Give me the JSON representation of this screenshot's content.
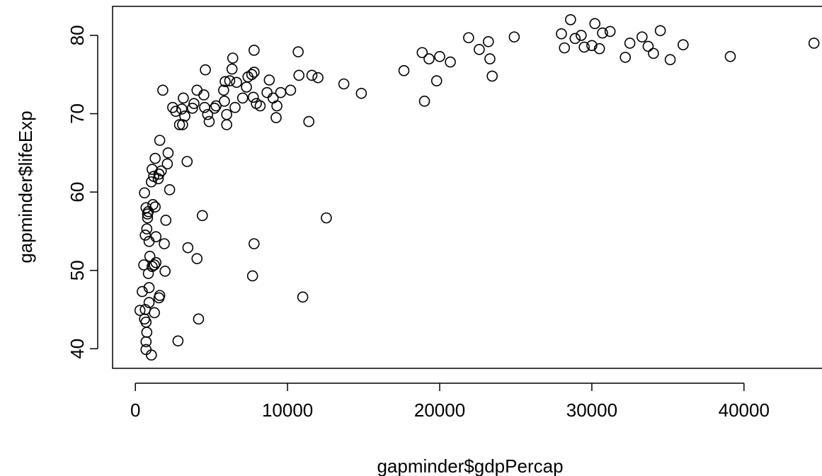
{
  "chart_data": {
    "type": "scatter",
    "title": "",
    "xlabel": "gapminder$gdpPercap",
    "ylabel": "gapminder$lifeExp",
    "xlim": [
      -1500,
      45500
    ],
    "ylim": [
      37.5,
      83.7
    ],
    "x_ticks": [
      0,
      10000,
      20000,
      30000,
      40000
    ],
    "x_tick_labels": [
      "0",
      "10000",
      "20000",
      "30000",
      "40000"
    ],
    "y_ticks": [
      40,
      50,
      60,
      70,
      80
    ],
    "y_tick_labels": [
      "40",
      "50",
      "60",
      "70",
      "80"
    ],
    "grid": false,
    "legend": "none",
    "points": [
      {
        "x": 300,
        "y": 44.9
      },
      {
        "x": 450,
        "y": 47.3
      },
      {
        "x": 550,
        "y": 50.7
      },
      {
        "x": 600,
        "y": 59.9
      },
      {
        "x": 600,
        "y": 43.8
      },
      {
        "x": 650,
        "y": 45.0
      },
      {
        "x": 650,
        "y": 54.5
      },
      {
        "x": 700,
        "y": 58.0
      },
      {
        "x": 700,
        "y": 43.4
      },
      {
        "x": 700,
        "y": 39.9
      },
      {
        "x": 700,
        "y": 40.9
      },
      {
        "x": 750,
        "y": 42.1
      },
      {
        "x": 750,
        "y": 55.3
      },
      {
        "x": 800,
        "y": 57.2
      },
      {
        "x": 800,
        "y": 56.7
      },
      {
        "x": 850,
        "y": 57.5
      },
      {
        "x": 850,
        "y": 49.6
      },
      {
        "x": 900,
        "y": 53.7
      },
      {
        "x": 900,
        "y": 47.8
      },
      {
        "x": 900,
        "y": 45.9
      },
      {
        "x": 950,
        "y": 51.8
      },
      {
        "x": 1050,
        "y": 39.2
      },
      {
        "x": 1050,
        "y": 61.3
      },
      {
        "x": 1100,
        "y": 62.9
      },
      {
        "x": 1100,
        "y": 50.5
      },
      {
        "x": 1150,
        "y": 58.4
      },
      {
        "x": 1200,
        "y": 62.0
      },
      {
        "x": 1250,
        "y": 50.7
      },
      {
        "x": 1250,
        "y": 44.6
      },
      {
        "x": 1300,
        "y": 58.1
      },
      {
        "x": 1300,
        "y": 64.3
      },
      {
        "x": 1350,
        "y": 51.0
      },
      {
        "x": 1350,
        "y": 54.3
      },
      {
        "x": 1500,
        "y": 61.7
      },
      {
        "x": 1550,
        "y": 62.3
      },
      {
        "x": 1550,
        "y": 46.5
      },
      {
        "x": 1600,
        "y": 46.8
      },
      {
        "x": 1600,
        "y": 66.6
      },
      {
        "x": 1700,
        "y": 62.7
      },
      {
        "x": 1800,
        "y": 73.0
      },
      {
        "x": 1900,
        "y": 53.4
      },
      {
        "x": 1950,
        "y": 49.9
      },
      {
        "x": 2000,
        "y": 56.4
      },
      {
        "x": 2100,
        "y": 63.6
      },
      {
        "x": 2150,
        "y": 65.0
      },
      {
        "x": 2250,
        "y": 60.3
      },
      {
        "x": 2450,
        "y": 70.8
      },
      {
        "x": 2650,
        "y": 70.3
      },
      {
        "x": 2800,
        "y": 41.0
      },
      {
        "x": 2900,
        "y": 68.6
      },
      {
        "x": 3050,
        "y": 70.6
      },
      {
        "x": 3100,
        "y": 68.6
      },
      {
        "x": 3150,
        "y": 72.0
      },
      {
        "x": 3250,
        "y": 69.7
      },
      {
        "x": 3400,
        "y": 63.9
      },
      {
        "x": 3450,
        "y": 52.9
      },
      {
        "x": 3750,
        "y": 70.7
      },
      {
        "x": 3850,
        "y": 71.3
      },
      {
        "x": 4050,
        "y": 51.5
      },
      {
        "x": 4050,
        "y": 73.0
      },
      {
        "x": 4150,
        "y": 43.8
      },
      {
        "x": 4400,
        "y": 57.0
      },
      {
        "x": 4500,
        "y": 72.4
      },
      {
        "x": 4550,
        "y": 70.8
      },
      {
        "x": 4600,
        "y": 75.6
      },
      {
        "x": 4750,
        "y": 69.9
      },
      {
        "x": 4850,
        "y": 69.0
      },
      {
        "x": 5200,
        "y": 70.7
      },
      {
        "x": 5300,
        "y": 71.0
      },
      {
        "x": 5800,
        "y": 73.0
      },
      {
        "x": 5850,
        "y": 71.6
      },
      {
        "x": 5900,
        "y": 74.1
      },
      {
        "x": 6000,
        "y": 69.9
      },
      {
        "x": 6000,
        "y": 68.6
      },
      {
        "x": 6200,
        "y": 74.2
      },
      {
        "x": 6350,
        "y": 75.7
      },
      {
        "x": 6400,
        "y": 77.1
      },
      {
        "x": 6550,
        "y": 70.8
      },
      {
        "x": 6650,
        "y": 74.0
      },
      {
        "x": 7050,
        "y": 72.0
      },
      {
        "x": 7300,
        "y": 73.4
      },
      {
        "x": 7400,
        "y": 74.7
      },
      {
        "x": 7650,
        "y": 75.0
      },
      {
        "x": 7700,
        "y": 49.3
      },
      {
        "x": 7750,
        "y": 72.1
      },
      {
        "x": 7800,
        "y": 53.4
      },
      {
        "x": 7800,
        "y": 78.1
      },
      {
        "x": 7800,
        "y": 75.3
      },
      {
        "x": 7950,
        "y": 71.3
      },
      {
        "x": 8200,
        "y": 71.0
      },
      {
        "x": 8650,
        "y": 72.7
      },
      {
        "x": 8800,
        "y": 74.3
      },
      {
        "x": 9050,
        "y": 72.0
      },
      {
        "x": 9250,
        "y": 69.5
      },
      {
        "x": 9300,
        "y": 71.0
      },
      {
        "x": 9550,
        "y": 72.7
      },
      {
        "x": 10200,
        "y": 73.0
      },
      {
        "x": 10700,
        "y": 77.9
      },
      {
        "x": 10750,
        "y": 74.9
      },
      {
        "x": 11000,
        "y": 46.6
      },
      {
        "x": 11400,
        "y": 69.0
      },
      {
        "x": 11600,
        "y": 74.9
      },
      {
        "x": 12000,
        "y": 74.6
      },
      {
        "x": 12550,
        "y": 56.7
      },
      {
        "x": 13700,
        "y": 73.8
      },
      {
        "x": 14850,
        "y": 72.6
      },
      {
        "x": 17650,
        "y": 75.5
      },
      {
        "x": 18850,
        "y": 77.8
      },
      {
        "x": 19000,
        "y": 71.6
      },
      {
        "x": 19300,
        "y": 77.0
      },
      {
        "x": 19800,
        "y": 74.2
      },
      {
        "x": 20000,
        "y": 77.3
      },
      {
        "x": 20700,
        "y": 76.6
      },
      {
        "x": 21900,
        "y": 79.7
      },
      {
        "x": 22600,
        "y": 78.2
      },
      {
        "x": 23200,
        "y": 79.2
      },
      {
        "x": 23300,
        "y": 77.0
      },
      {
        "x": 23450,
        "y": 74.8
      },
      {
        "x": 24900,
        "y": 79.8
      },
      {
        "x": 28000,
        "y": 80.2
      },
      {
        "x": 28200,
        "y": 78.4
      },
      {
        "x": 28600,
        "y": 82.0
      },
      {
        "x": 28900,
        "y": 79.6
      },
      {
        "x": 29300,
        "y": 80.0
      },
      {
        "x": 29500,
        "y": 78.5
      },
      {
        "x": 30000,
        "y": 78.7
      },
      {
        "x": 30200,
        "y": 81.5
      },
      {
        "x": 30500,
        "y": 78.3
      },
      {
        "x": 30700,
        "y": 80.3
      },
      {
        "x": 31200,
        "y": 80.5
      },
      {
        "x": 32200,
        "y": 77.2
      },
      {
        "x": 32500,
        "y": 79.0
      },
      {
        "x": 33300,
        "y": 79.8
      },
      {
        "x": 33700,
        "y": 78.6
      },
      {
        "x": 34050,
        "y": 77.7
      },
      {
        "x": 34500,
        "y": 80.6
      },
      {
        "x": 35150,
        "y": 76.9
      },
      {
        "x": 36000,
        "y": 78.8
      },
      {
        "x": 39100,
        "y": 77.3
      },
      {
        "x": 44600,
        "y": 79.0
      }
    ]
  }
}
